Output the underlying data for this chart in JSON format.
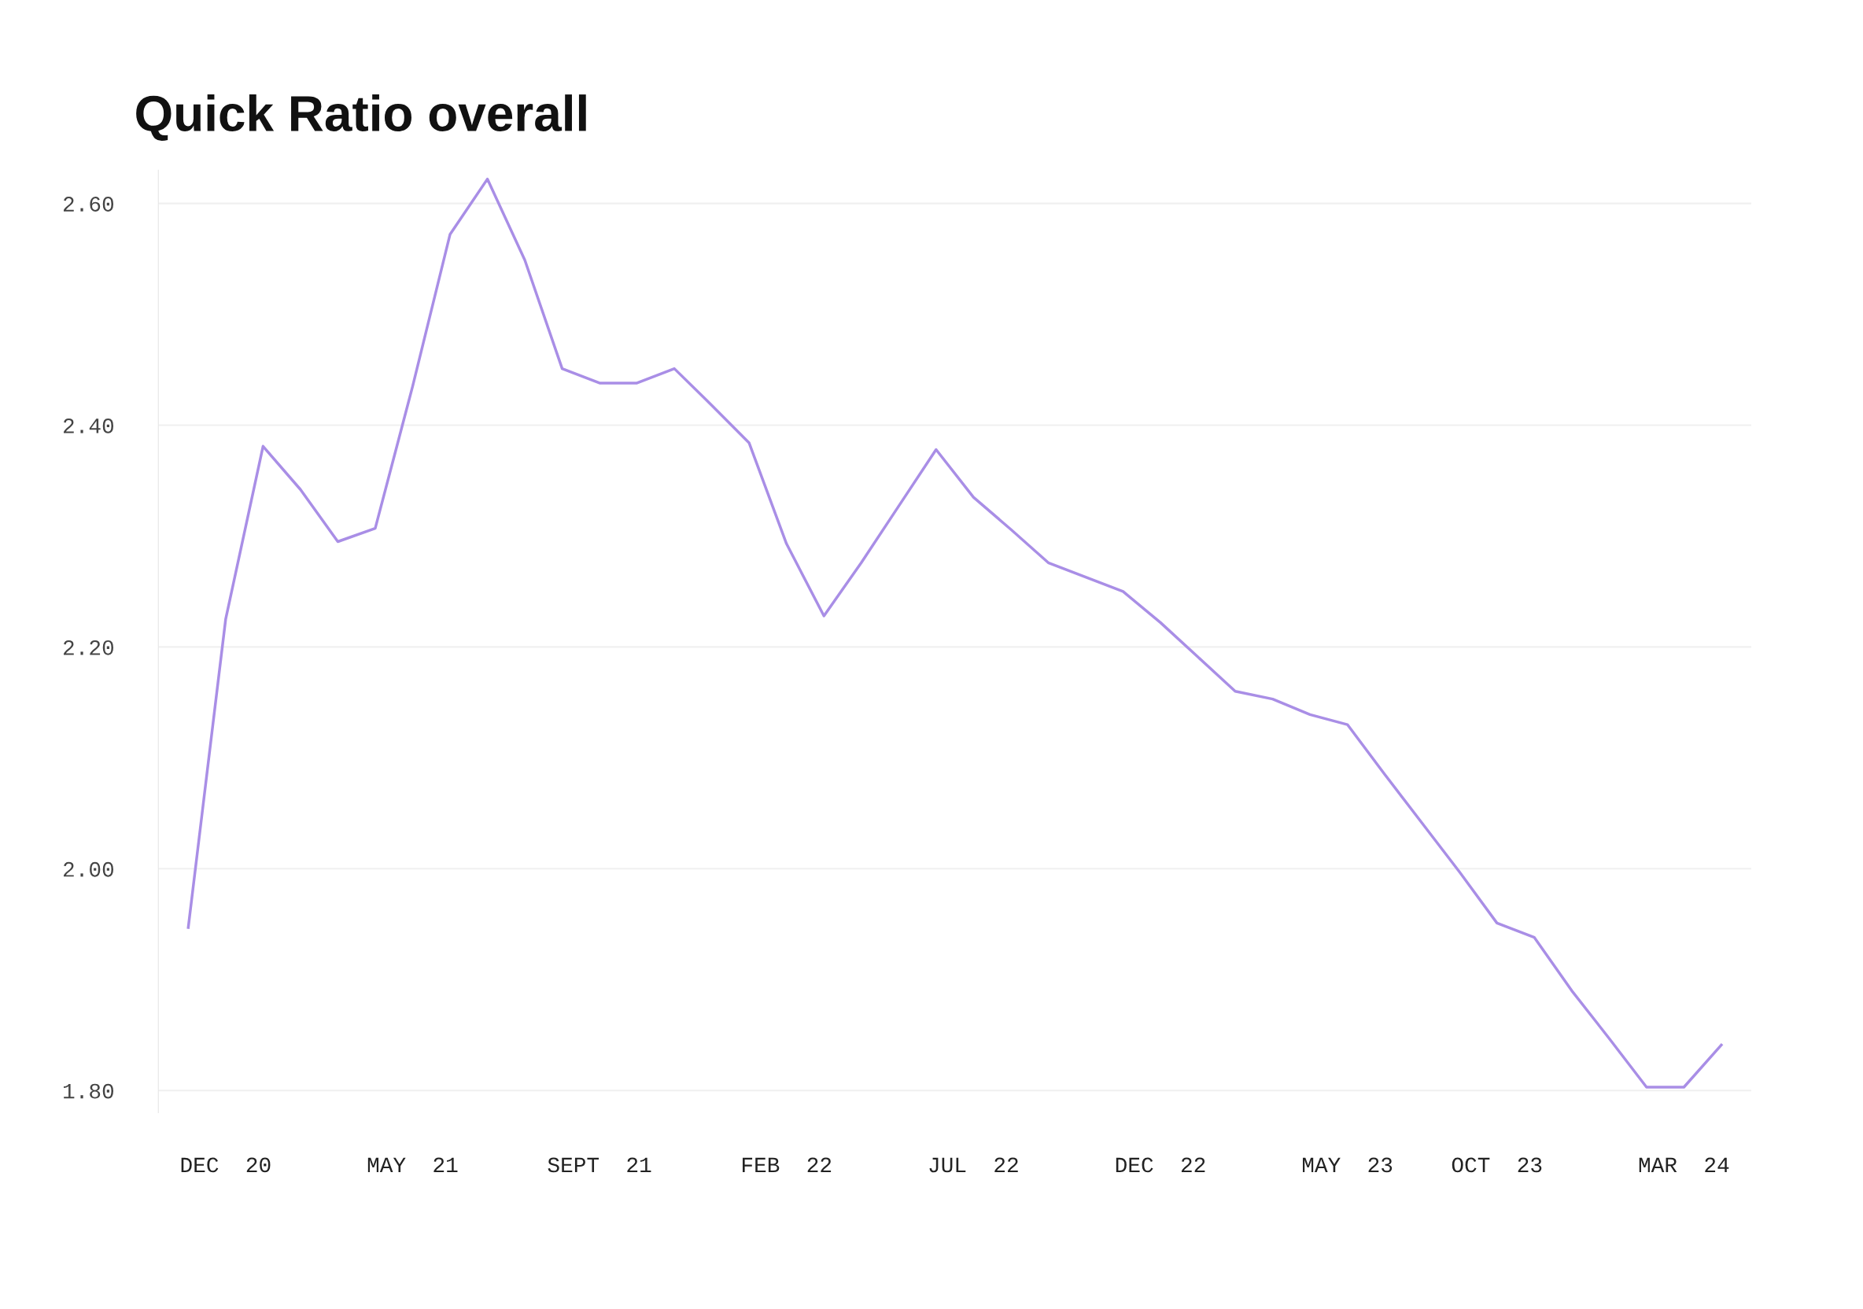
{
  "chart_data": {
    "type": "line",
    "title": "Quick Ratio overall",
    "categories": [
      null,
      "DEC  20",
      null,
      null,
      null,
      null,
      "MAY  21",
      null,
      null,
      null,
      null,
      "SEPT  21",
      null,
      null,
      null,
      null,
      "FEB  22",
      null,
      null,
      null,
      null,
      "JUL  22",
      null,
      null,
      null,
      null,
      "DEC  22",
      null,
      null,
      null,
      null,
      "MAY  23",
      null,
      null,
      null,
      "OCT  23",
      null,
      null,
      null,
      null,
      "MAR  24",
      null
    ],
    "series": [
      {
        "color": "#a98ee6",
        "values": [
          1.947,
          2.225,
          2.381,
          2.342,
          2.295,
          2.307,
          2.435,
          2.572,
          2.622,
          2.549,
          2.451,
          2.438,
          2.438,
          2.451,
          2.418,
          2.384,
          2.293,
          2.228,
          2.276,
          2.327,
          2.378,
          2.335,
          2.306,
          2.276,
          2.263,
          2.25,
          2.222,
          2.191,
          2.16,
          2.153,
          2.139,
          2.13,
          2.085,
          2.041,
          1.997,
          1.951,
          1.938,
          1.89,
          1.847,
          1.803,
          1.803,
          1.841
        ]
      }
    ],
    "ylim": [
      1.78,
      2.63
    ],
    "yticks": [
      {
        "value": 1.8,
        "label": "1.80"
      },
      {
        "value": 2.0,
        "label": "2.00"
      },
      {
        "value": 2.2,
        "label": "2.20"
      },
      {
        "value": 2.4,
        "label": "2.40"
      },
      {
        "value": 2.6,
        "label": "2.60"
      }
    ],
    "grid": "y",
    "marker": "none",
    "line_style": "solid"
  }
}
